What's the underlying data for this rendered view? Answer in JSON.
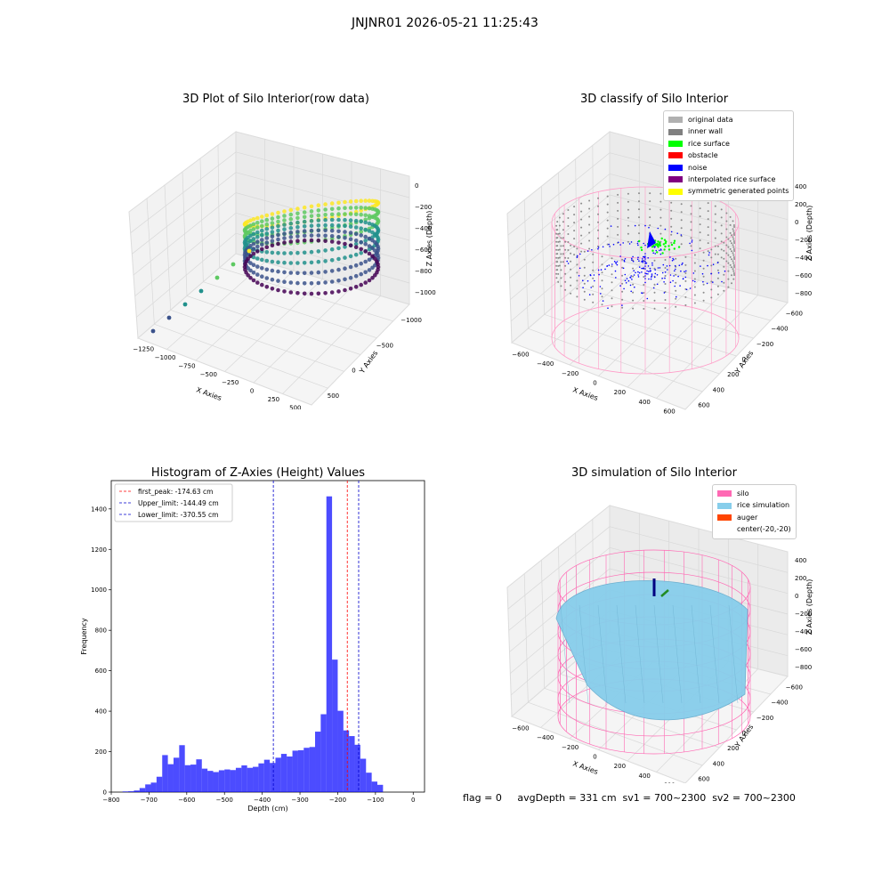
{
  "figure": {
    "suptitle": "JNJNR01 2026-05-21 11:25:43"
  },
  "status_text": "flag = 0     avgDepth = 331 cm  sv1 = 700~2300  sv2 = 700~2300",
  "panels": {
    "raw": {
      "title": "3D Plot of Silo Interior(row data)",
      "xlabel": "X Axies",
      "ylabel": "Y Axies",
      "zlabel": "Z Axies (Depth)",
      "xticks": [
        "−1250",
        "−1000",
        "−750",
        "−500",
        "−250",
        "0",
        "250",
        "500"
      ],
      "yticks": [
        "500",
        "0",
        "−500",
        "−1000"
      ],
      "zticks": [
        "0",
        "−200",
        "−400",
        "−600",
        "−800",
        "−1000"
      ],
      "colormap": "viridis"
    },
    "classify": {
      "title": "3D classify of Silo Interior",
      "xlabel": "X Axies",
      "ylabel": "Y Axies",
      "zlabel": "Z Axies (Depth)",
      "xticks": [
        "−600",
        "−400",
        "−200",
        "0",
        "200",
        "400",
        "600"
      ],
      "yticks": [
        "600",
        "400",
        "200",
        "0",
        "−200",
        "−400",
        "−600"
      ],
      "zticks": [
        "400",
        "200",
        "0",
        "−200",
        "−400",
        "−600",
        "−800"
      ],
      "legend": [
        {
          "label": "original data",
          "color": "#b0b0b0"
        },
        {
          "label": "inner wall",
          "color": "#808080"
        },
        {
          "label": "rice surface",
          "color": "#00ff00"
        },
        {
          "label": "obstacle",
          "color": "#ff0000"
        },
        {
          "label": "noise",
          "color": "#0000ff"
        },
        {
          "label": "interpolated rice surface",
          "color": "#800080"
        },
        {
          "label": "symmetric generated points",
          "color": "#ffff00"
        }
      ]
    },
    "simulation": {
      "title": "3D simulation of Silo Interior",
      "xlabel": "X Axies",
      "ylabel": "Y Axies",
      "zlabel": "Z Axies (Depth)",
      "xticks": [
        "−600",
        "−400",
        "−200",
        "0",
        "200",
        "400",
        "600"
      ],
      "yticks": [
        "600",
        "400",
        "200",
        "0",
        "−200",
        "−400",
        "−600"
      ],
      "zticks": [
        "400",
        "200",
        "0",
        "−200",
        "−400",
        "−600",
        "−800"
      ],
      "legend": [
        {
          "label": "silo",
          "color": "#ff69b4"
        },
        {
          "label": "rice simulation",
          "color": "#87ceeb"
        },
        {
          "label": "auger",
          "color": "#ff4500"
        },
        {
          "label": "center(-20,-20)",
          "color": "#ffffff"
        }
      ]
    }
  },
  "chart_data": {
    "type": "bar",
    "title": "Histogram of Z-Axies (Height) Values",
    "xlabel": "Depth (cm)",
    "ylabel": "Frequency",
    "xlim": [
      -800,
      30
    ],
    "ylim": [
      0,
      1540
    ],
    "xticks": [
      -800,
      -700,
      -600,
      -500,
      -400,
      -300,
      -200,
      -100,
      0
    ],
    "yticks": [
      0,
      200,
      400,
      600,
      800,
      1000,
      1200,
      1400
    ],
    "bin_width": 15,
    "bin_start": -770,
    "color": "#0000ff",
    "values": [
      3,
      4,
      8,
      20,
      38,
      47,
      76,
      183,
      138,
      170,
      232,
      133,
      136,
      162,
      116,
      105,
      99,
      108,
      112,
      109,
      120,
      132,
      120,
      125,
      142,
      160,
      144,
      170,
      189,
      176,
      205,
      207,
      219,
      223,
      299,
      385,
      1462,
      655,
      402,
      305,
      277,
      234,
      165,
      96,
      52,
      36
    ],
    "vlines": [
      {
        "label": "first_peak: -174.63 cm",
        "x": -174.63,
        "color": "#ff0000"
      },
      {
        "label": "Upper_limit: -144.49 cm",
        "x": -144.49,
        "color": "#0000cd"
      },
      {
        "label": "Lower_limit: -370.55 cm",
        "x": -370.55,
        "color": "#0000cd"
      }
    ],
    "legend_position": "upper-left"
  }
}
